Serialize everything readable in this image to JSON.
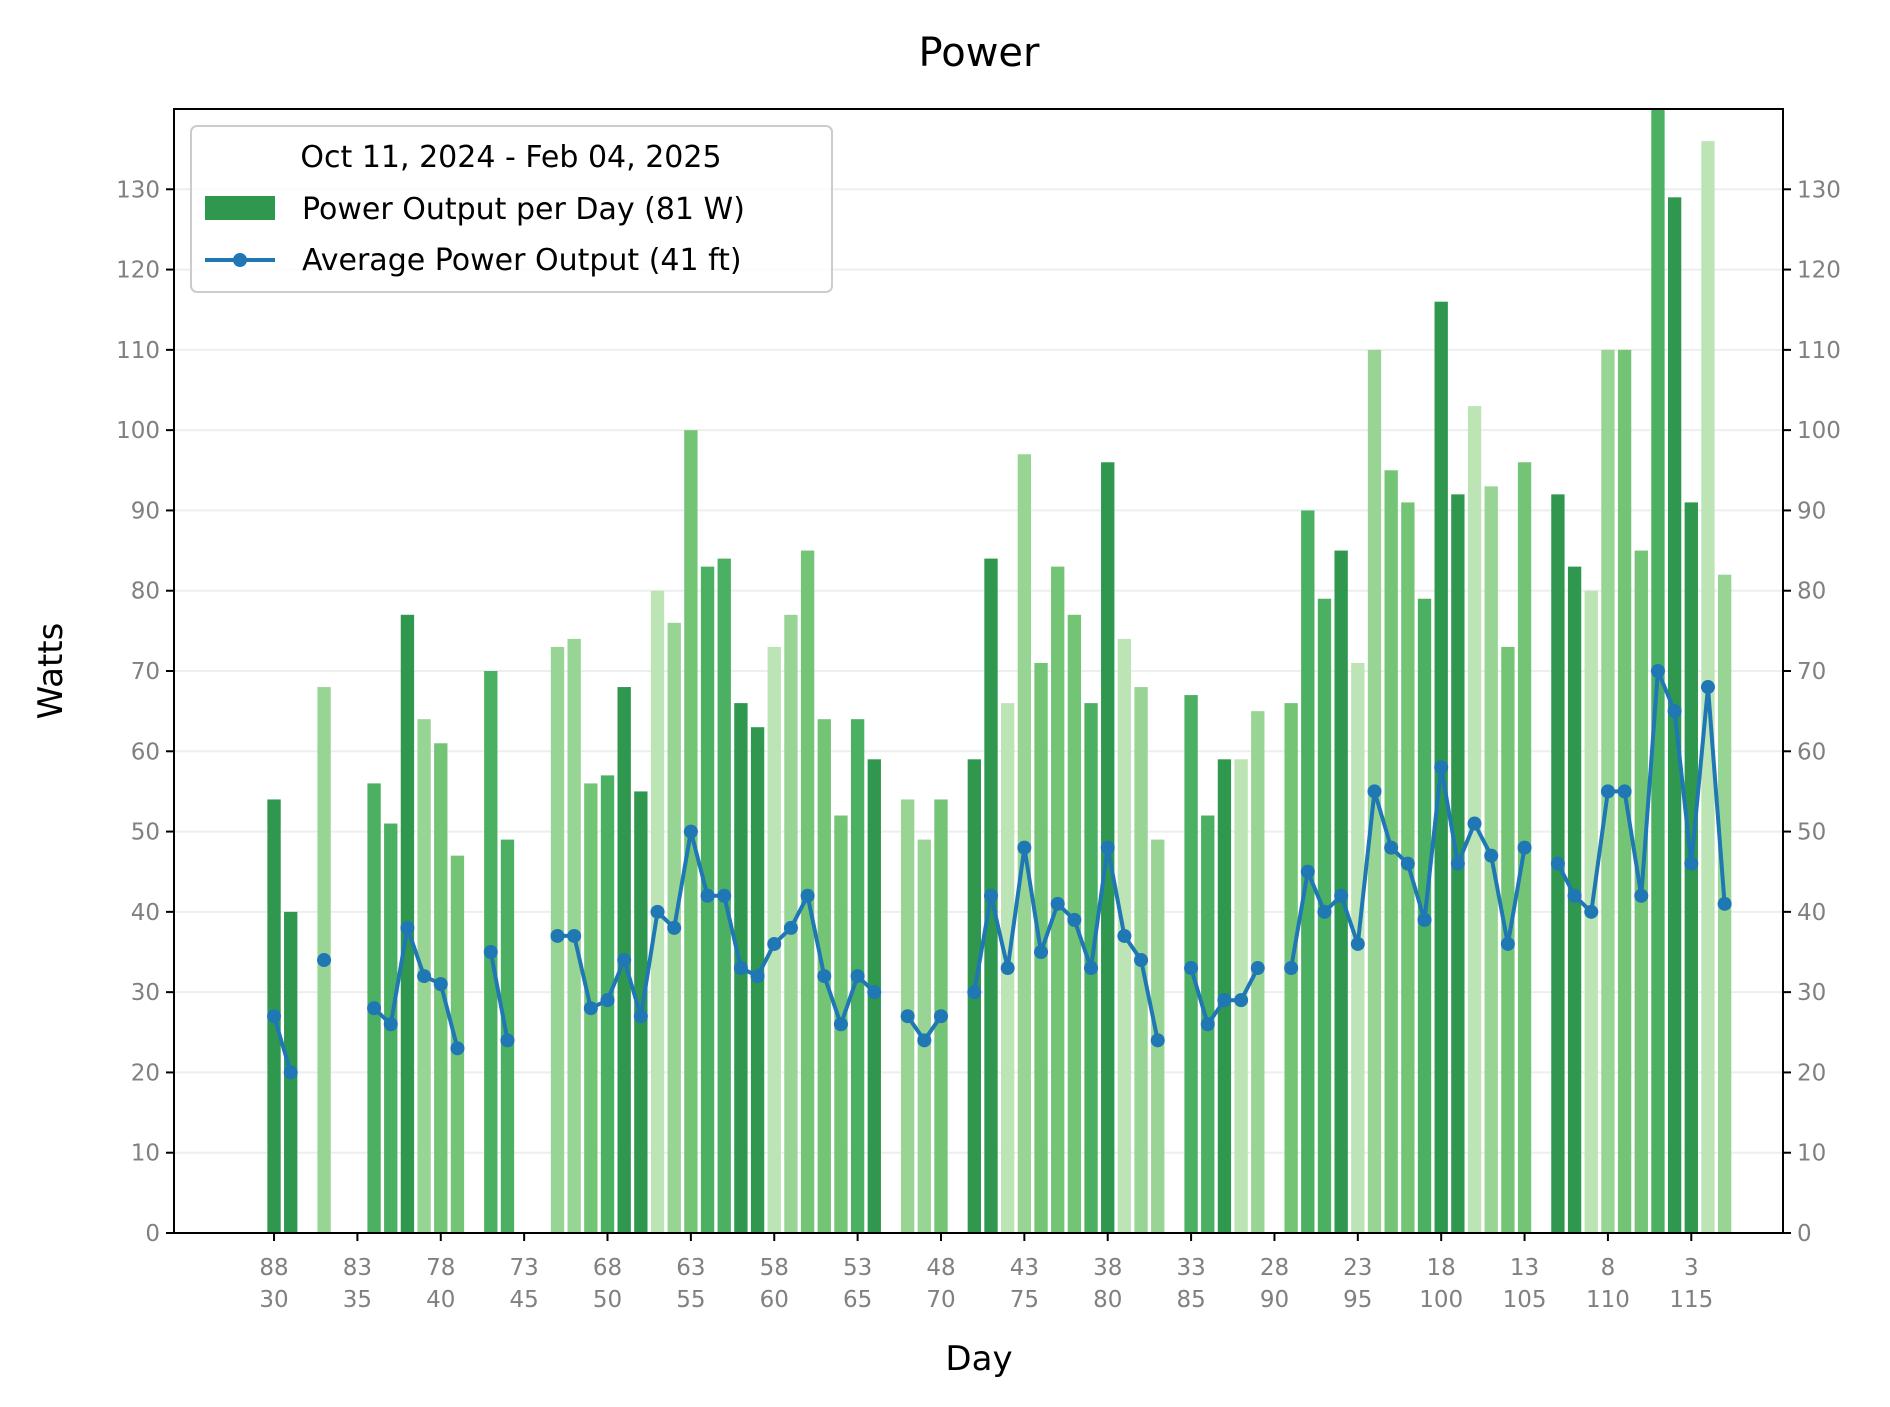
{
  "chart_data": {
    "type": "bar",
    "title": "Power",
    "xlabel": "Day",
    "ylabel": "Watts",
    "ylim": [
      0,
      140
    ],
    "yticks": [
      0,
      10,
      20,
      30,
      40,
      50,
      60,
      70,
      80,
      90,
      100,
      110,
      120,
      130
    ],
    "xlim": [
      24,
      120.5
    ],
    "xticks": [
      30,
      35,
      40,
      45,
      50,
      55,
      60,
      65,
      70,
      75,
      80,
      85,
      90,
      95,
      100,
      105,
      110,
      115
    ],
    "xtick_labels_top": [
      "88",
      "83",
      "78",
      "73",
      "68",
      "63",
      "58",
      "53",
      "48",
      "43",
      "38",
      "33",
      "28",
      "23",
      "18",
      "13",
      "8",
      "3"
    ],
    "grid": "horizontal",
    "legend": {
      "placement": "top-left",
      "title": "Oct 11, 2024 - Feb 04, 2025",
      "entries": [
        "Power Output per Day (81 W)",
        "Average Power Output (41 ft)"
      ]
    },
    "x": [
      30,
      31,
      33,
      36,
      37,
      38,
      39,
      40,
      41,
      43,
      44,
      47,
      48,
      49,
      50,
      51,
      52,
      53,
      54,
      55,
      56,
      57,
      58,
      59,
      60,
      61,
      62,
      63,
      64,
      65,
      66,
      68,
      69,
      70,
      72,
      73,
      74,
      75,
      76,
      77,
      78,
      79,
      80,
      81,
      82,
      83,
      85,
      86,
      87,
      88,
      89,
      91,
      92,
      93,
      94,
      95,
      96,
      97,
      98,
      99,
      100,
      101,
      102,
      103,
      104,
      105,
      107,
      108,
      109,
      110,
      111,
      112,
      113,
      114,
      115,
      116,
      117
    ],
    "series": [
      {
        "name": "Power Output per Day (81 W)",
        "kind": "bar",
        "values": [
          54,
          40,
          68,
          56,
          51,
          77,
          64,
          61,
          47,
          70,
          49,
          73,
          74,
          56,
          57,
          68,
          55,
          80,
          76,
          100,
          83,
          84,
          66,
          63,
          73,
          77,
          85,
          64,
          52,
          64,
          59,
          54,
          49,
          54,
          59,
          84,
          66,
          97,
          71,
          83,
          77,
          66,
          96,
          74,
          68,
          49,
          67,
          52,
          59,
          59,
          65,
          66,
          90,
          79,
          85,
          71,
          110,
          95,
          91,
          79,
          116,
          92,
          103,
          93,
          73,
          96,
          92,
          83,
          80,
          110,
          110,
          85,
          140,
          129,
          91,
          136,
          82
        ],
        "shades": [
          4,
          4,
          1,
          3,
          3,
          4,
          1,
          2,
          2,
          3,
          3,
          1,
          1,
          2,
          3,
          4,
          4,
          0,
          1,
          2,
          3,
          3,
          4,
          4,
          0,
          1,
          2,
          2,
          2,
          3,
          4,
          1,
          1,
          2,
          4,
          4,
          0,
          1,
          2,
          2,
          2,
          3,
          4,
          0,
          1,
          1,
          3,
          3,
          4,
          0,
          1,
          2,
          3,
          3,
          4,
          0,
          1,
          2,
          2,
          3,
          4,
          4,
          0,
          1,
          2,
          2,
          4,
          4,
          0,
          1,
          2,
          2,
          3,
          4,
          4,
          0,
          1
        ]
      },
      {
        "name": "Average Power Output (41 ft)",
        "kind": "line",
        "values": [
          27,
          20,
          34,
          28,
          26,
          38,
          32,
          31,
          23,
          35,
          24,
          37,
          37,
          28,
          29,
          34,
          27,
          40,
          38,
          50,
          42,
          42,
          33,
          32,
          36,
          38,
          42,
          32,
          26,
          32,
          30,
          27,
          24,
          27,
          30,
          42,
          33,
          48,
          35,
          41,
          39,
          33,
          48,
          37,
          34,
          24,
          33,
          26,
          29,
          29,
          33,
          33,
          45,
          40,
          42,
          36,
          55,
          48,
          46,
          39,
          58,
          46,
          51,
          47,
          36,
          48,
          46,
          42,
          40,
          55,
          55,
          42,
          70,
          65,
          46,
          68,
          41
        ]
      }
    ],
    "colors": {
      "bar_shades": [
        "#bce4b5",
        "#98d594",
        "#74c476",
        "#4bb062",
        "#2f974e",
        "#157f3b",
        "#00682a"
      ],
      "line": "#1f77b4",
      "legend_bar": "#2f974e",
      "grid": "#eeeeee",
      "tick_text": "#808080"
    }
  }
}
